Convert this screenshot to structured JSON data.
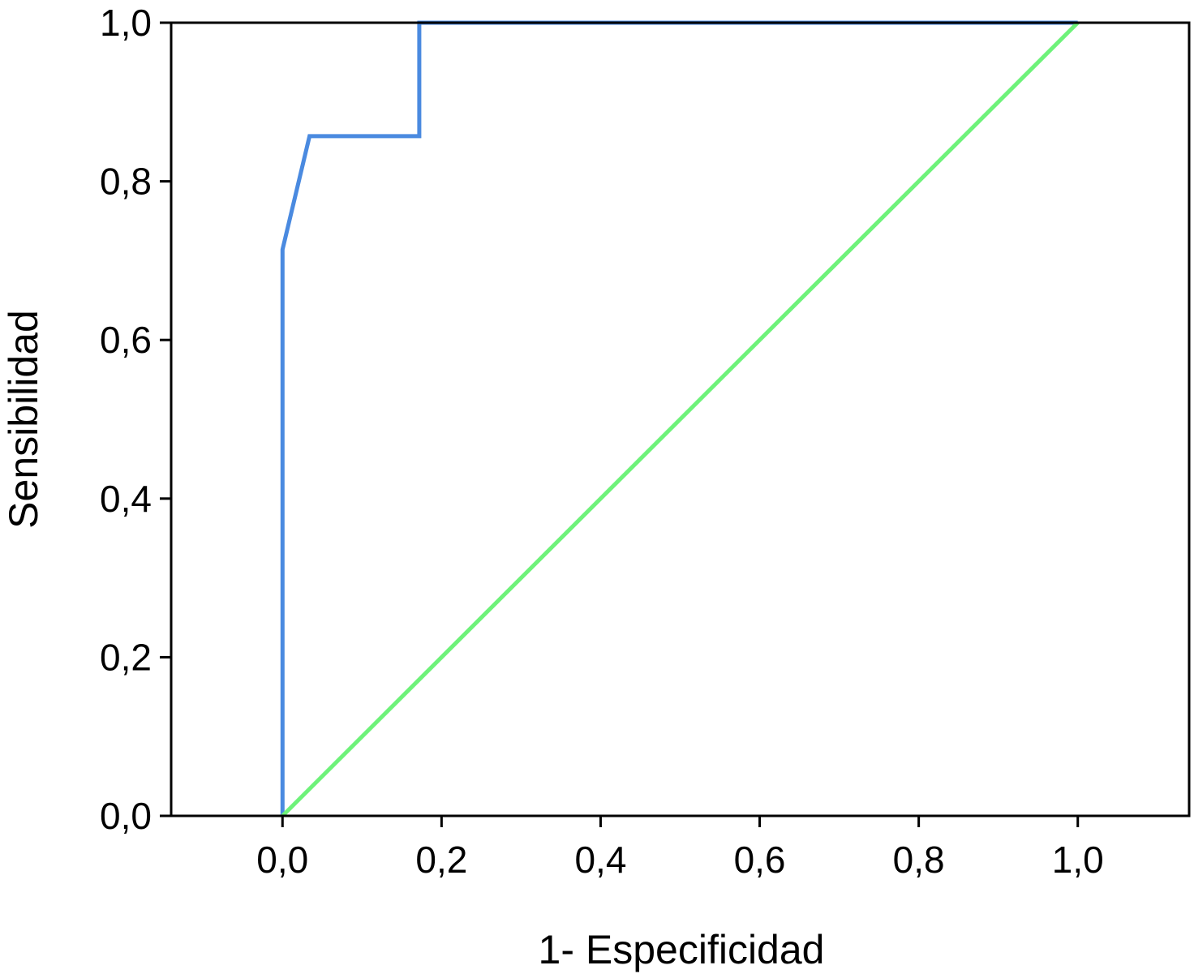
{
  "chart_data": {
    "type": "line",
    "title": "",
    "xlabel": "1- Especificidad",
    "ylabel": "Sensibilidad",
    "xlim": [
      -0.14,
      1.14
    ],
    "ylim": [
      0.0,
      1.0
    ],
    "x_ticks": [
      0.0,
      0.2,
      0.4,
      0.6,
      0.8,
      1.0
    ],
    "x_tick_labels": [
      "0,0",
      "0,2",
      "0,4",
      "0,6",
      "0,8",
      "1,0"
    ],
    "y_ticks": [
      0.0,
      0.2,
      0.4,
      0.6,
      0.8,
      1.0
    ],
    "y_tick_labels": [
      "0,0",
      "0,2",
      "0,4",
      "0,6",
      "0,8",
      "1,0"
    ],
    "grid": false,
    "legend": "none",
    "series": [
      {
        "color": "#4a8ae0",
        "x": [
          0.0,
          0.0,
          0.034,
          0.172,
          0.172,
          1.0
        ],
        "y": [
          0.0,
          0.714,
          0.857,
          0.857,
          1.0,
          1.0
        ]
      },
      {
        "color": "#6ef27a",
        "x": [
          0.0,
          1.0
        ],
        "y": [
          0.0,
          1.0
        ]
      }
    ]
  }
}
